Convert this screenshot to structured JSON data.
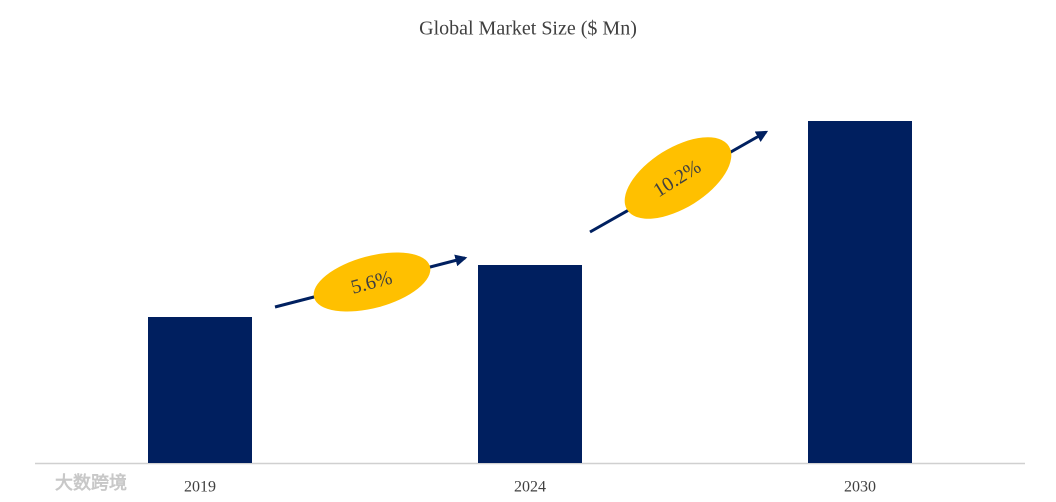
{
  "chart_data": {
    "type": "bar",
    "title": "Global Market Size ($ Mn)",
    "categories": [
      "2019",
      "2024",
      "2030"
    ],
    "values": [
      146,
      198,
      342
    ],
    "color": "#001f5f",
    "ylim": [
      0,
      400
    ],
    "annotations": [
      "5.6%",
      "10.2%"
    ],
    "watermark": "大数跨境"
  }
}
